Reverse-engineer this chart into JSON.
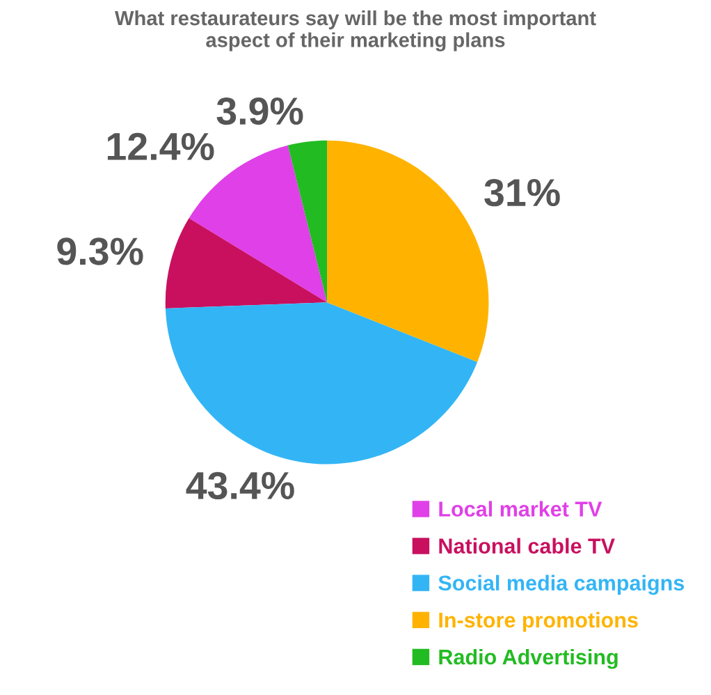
{
  "chart_data": {
    "type": "pie",
    "title": "What restaurateurs say will be the most important\naspect of their marketing plans",
    "categories": [
      "Local market TV",
      "National cable TV",
      "Social media campaigns",
      "In-store promotions",
      "Radio Advertising"
    ],
    "values": [
      12.4,
      9.3,
      43.4,
      31,
      3.9
    ],
    "value_labels": [
      "12.4%",
      "9.3%",
      "43.4%",
      "31%",
      "3.9%"
    ],
    "colors": [
      "#e040e8",
      "#c8105f",
      "#33b5f5",
      "#ffb300",
      "#22bb22"
    ],
    "legend": "bottom right"
  }
}
